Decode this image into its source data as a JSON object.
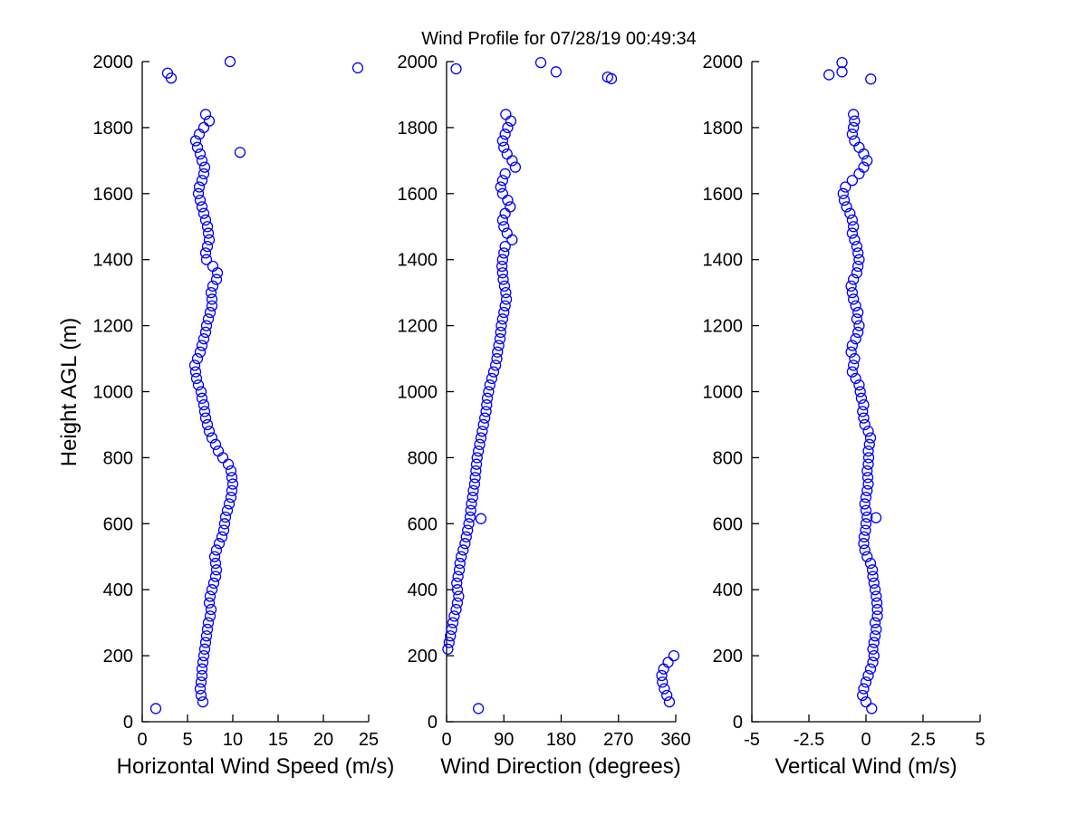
{
  "figure": {
    "title": "Wind Profile for  07/28/19 00:49:34",
    "background_color": "#ffffff",
    "marker_color": "#0000ff",
    "axis_color": "#000000",
    "marker": "open-circle"
  },
  "profile_heights_m": [
    40,
    60,
    80,
    100,
    120,
    140,
    160,
    180,
    200,
    220,
    240,
    260,
    280,
    300,
    320,
    340,
    360,
    380,
    400,
    420,
    440,
    460,
    480,
    500,
    520,
    540,
    560,
    580,
    600,
    620,
    640,
    660,
    680,
    700,
    720,
    740,
    760,
    780,
    800,
    820,
    840,
    860,
    880,
    900,
    920,
    940,
    960,
    980,
    1000,
    1020,
    1040,
    1060,
    1080,
    1100,
    1120,
    1140,
    1160,
    1180,
    1200,
    1220,
    1240,
    1260,
    1280,
    1300,
    1320,
    1340,
    1360,
    1380,
    1400,
    1420,
    1440,
    1460,
    1480,
    1500,
    1520,
    1540,
    1560,
    1580,
    1600,
    1620,
    1640,
    1660,
    1680,
    1700,
    1720,
    1740,
    1760,
    1780,
    1800,
    1820,
    1840
  ],
  "chart_data": [
    {
      "type": "scatter",
      "xlabel": "Horizontal Wind Speed (m/s)",
      "ylabel": "Height AGL (m)",
      "xlim": [
        0,
        25
      ],
      "ylim": [
        0,
        2000
      ],
      "grid": false,
      "xticks": [
        0,
        5,
        10,
        15,
        20,
        25
      ],
      "xtick_labels": [
        "0",
        "5",
        "10",
        "15",
        "20",
        "25"
      ],
      "yticks": [
        0,
        200,
        400,
        600,
        800,
        1000,
        1200,
        1400,
        1600,
        1800,
        2000
      ],
      "ytick_labels": [
        "0",
        "200",
        "400",
        "600",
        "800",
        "1000",
        "1200",
        "1400",
        "1600",
        "1800",
        "2000"
      ],
      "values": [
        1.5,
        6.7,
        6.5,
        6.4,
        6.5,
        6.6,
        6.6,
        6.7,
        6.8,
        6.9,
        7.0,
        7.1,
        7.2,
        7.3,
        7.5,
        7.6,
        7.4,
        7.5,
        7.7,
        7.9,
        8.1,
        8.2,
        8.1,
        8.0,
        8.2,
        8.5,
        8.8,
        9.0,
        9.1,
        9.2,
        9.4,
        9.6,
        9.8,
        9.9,
        10.0,
        9.9,
        9.8,
        9.5,
        8.9,
        8.4,
        8.1,
        7.7,
        7.4,
        7.2,
        7.0,
        6.9,
        6.8,
        6.6,
        6.5,
        6.2,
        6.0,
        5.9,
        5.8,
        6.1,
        6.4,
        6.6,
        6.8,
        7.0,
        7.1,
        7.3,
        7.5,
        7.7,
        7.7,
        7.6,
        7.8,
        8.2,
        8.3,
        7.8,
        7.1,
        7.0,
        7.2,
        7.4,
        7.3,
        7.2,
        7.0,
        6.8,
        6.6,
        6.4,
        6.2,
        6.3,
        6.6,
        6.8,
        6.9,
        6.6,
        6.4,
        6.1,
        5.9,
        6.3,
        6.8,
        7.4,
        7.0
      ],
      "outlier_points": [
        [
          9.7,
          2000
        ],
        [
          23.8,
          1981
        ],
        [
          2.8,
          1965
        ],
        [
          3.2,
          1950
        ],
        [
          10.8,
          1725
        ]
      ]
    },
    {
      "type": "scatter",
      "xlabel": "Wind Direction (degrees)",
      "ylabel": "",
      "xlim": [
        0,
        360
      ],
      "ylim": [
        0,
        2000
      ],
      "grid": false,
      "xticks": [
        0,
        90,
        180,
        270,
        360
      ],
      "xtick_labels": [
        "0",
        "90",
        "180",
        "270",
        "360"
      ],
      "yticks": [
        0,
        200,
        400,
        600,
        800,
        1000,
        1200,
        1400,
        1600,
        1800,
        2000
      ],
      "ytick_labels": [
        "0",
        "200",
        "400",
        "600",
        "800",
        "1000",
        "1200",
        "1400",
        "1600",
        "1800",
        "2000"
      ],
      "values": [
        50,
        350,
        346,
        342,
        339,
        338,
        341,
        348,
        357,
        2,
        4,
        6,
        8,
        10,
        12,
        15,
        17,
        19,
        17,
        16,
        18,
        20,
        21,
        23,
        26,
        29,
        31,
        33,
        35,
        37,
        38,
        39,
        41,
        42,
        44,
        45,
        46,
        47,
        48,
        50,
        52,
        54,
        56,
        58,
        60,
        62,
        63,
        64,
        66,
        68,
        71,
        74,
        77,
        79,
        80,
        82,
        84,
        85,
        86,
        88,
        90,
        92,
        94,
        93,
        91,
        89,
        88,
        87,
        88,
        90,
        92,
        103,
        95,
        90,
        88,
        92,
        100,
        96,
        88,
        85,
        88,
        92,
        108,
        103,
        95,
        90,
        88,
        92,
        96,
        101,
        93
      ],
      "outlier_points": [
        [
          148,
          1997
        ],
        [
          15,
          1978
        ],
        [
          172,
          1969
        ],
        [
          253,
          1953
        ],
        [
          259,
          1948
        ],
        [
          54,
          615
        ]
      ]
    },
    {
      "type": "scatter",
      "xlabel": "Vertical Wind (m/s)",
      "ylabel": "",
      "xlim": [
        -5,
        5
      ],
      "ylim": [
        0,
        2000
      ],
      "grid": false,
      "xticks": [
        -5,
        -2.5,
        0,
        2.5,
        5
      ],
      "xtick_labels": [
        "-5",
        "-2.5",
        "0",
        "2.5",
        "5"
      ],
      "yticks": [
        0,
        200,
        400,
        600,
        800,
        1000,
        1200,
        1400,
        1600,
        1800,
        2000
      ],
      "ytick_labels": [
        "0",
        "200",
        "400",
        "600",
        "800",
        "1000",
        "1200",
        "1400",
        "1600",
        "1800",
        "2000"
      ],
      "values": [
        0.25,
        0.0,
        -0.15,
        -0.1,
        0.0,
        0.1,
        0.2,
        0.3,
        0.35,
        0.3,
        0.35,
        0.4,
        0.45,
        0.4,
        0.5,
        0.5,
        0.48,
        0.45,
        0.4,
        0.35,
        0.3,
        0.28,
        0.2,
        0.05,
        -0.05,
        -0.1,
        -0.08,
        -0.02,
        0.0,
        0.05,
        0.0,
        -0.05,
        0.0,
        0.05,
        0.1,
        0.08,
        0.05,
        0.1,
        0.12,
        0.1,
        0.15,
        0.2,
        0.1,
        -0.05,
        -0.1,
        -0.15,
        -0.1,
        -0.2,
        -0.25,
        -0.3,
        -0.45,
        -0.6,
        -0.55,
        -0.5,
        -0.65,
        -0.6,
        -0.45,
        -0.35,
        -0.3,
        -0.4,
        -0.35,
        -0.45,
        -0.55,
        -0.6,
        -0.65,
        -0.55,
        -0.4,
        -0.35,
        -0.3,
        -0.35,
        -0.4,
        -0.5,
        -0.6,
        -0.55,
        -0.6,
        -0.7,
        -0.85,
        -0.95,
        -1.0,
        -0.9,
        -0.6,
        -0.3,
        -0.1,
        0.05,
        -0.1,
        -0.3,
        -0.5,
        -0.6,
        -0.55,
        -0.5,
        -0.55
      ],
      "outlier_points": [
        [
          -1.05,
          1997
        ],
        [
          -1.05,
          1969
        ],
        [
          -1.62,
          1960
        ],
        [
          0.21,
          1947
        ],
        [
          0.44,
          618
        ]
      ]
    }
  ]
}
